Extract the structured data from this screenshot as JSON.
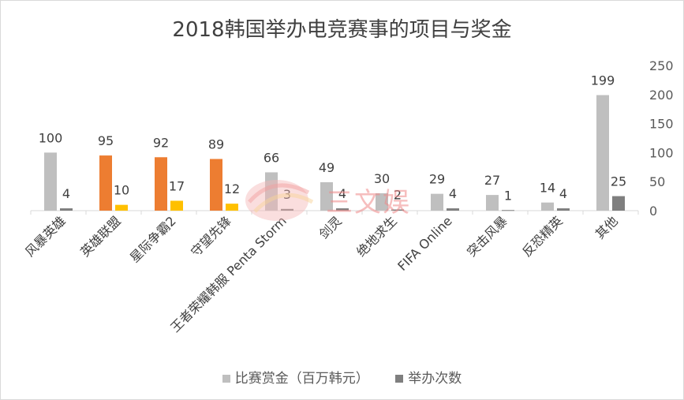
{
  "chart_data": {
    "type": "bar",
    "title": "2018韩国举办电竞赛事的项目与奖金",
    "categories": [
      "风暴英雄",
      "英雄联盟",
      "星际争霸2",
      "守望先锋",
      "王者荣耀韩服 Penta Storm",
      "剑灵",
      "绝地求生",
      "FIFA Online",
      "突击风暴",
      "反恐精英",
      "其他"
    ],
    "series": [
      {
        "name": "比赛赏金（百万韩元）",
        "values": [
          100,
          95,
          92,
          89,
          66,
          49,
          30,
          29,
          27,
          14,
          199
        ],
        "labels": [
          "100",
          "95",
          "92",
          "89",
          "66",
          "49",
          "30",
          "29",
          "27",
          "14",
          "199"
        ],
        "colors": [
          "#bfbfbf",
          "#ed7d31",
          "#ed7d31",
          "#ed7d31",
          "#bfbfbf",
          "#bfbfbf",
          "#bfbfbf",
          "#bfbfbf",
          "#bfbfbf",
          "#bfbfbf",
          "#bfbfbf"
        ]
      },
      {
        "name": "举办次数",
        "values": [
          4,
          10,
          17,
          12,
          3,
          4,
          2,
          4,
          1,
          4,
          25
        ],
        "labels": [
          "4",
          "10",
          "17",
          "12",
          "3",
          "4",
          "2",
          "4",
          "1",
          "4",
          "25"
        ],
        "colors": [
          "#7f7f7f",
          "#ffc000",
          "#ffc000",
          "#ffc000",
          "#7f7f7f",
          "#7f7f7f",
          "#7f7f7f",
          "#7f7f7f",
          "#7f7f7f",
          "#7f7f7f",
          "#7f7f7f"
        ]
      }
    ],
    "ylim": [
      0,
      250
    ],
    "yticks": [
      "0",
      "50",
      "100",
      "150",
      "200",
      "250"
    ],
    "grid": false,
    "legend_position": "bottom",
    "watermark": "三文娱"
  },
  "legend_colors": [
    "#bfbfbf",
    "#7f7f7f"
  ]
}
